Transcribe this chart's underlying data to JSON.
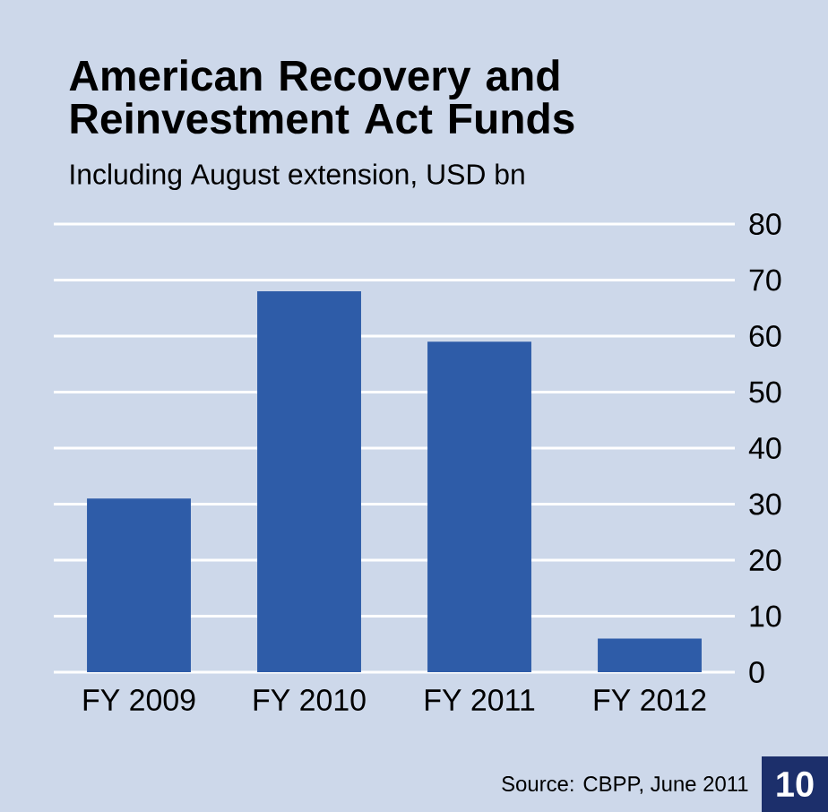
{
  "chart_data": {
    "type": "bar",
    "title": "American Recovery and Reinvestment Act Funds",
    "subtitle": "Including August extension, USD bn",
    "categories": [
      "FY 2009",
      "FY 2010",
      "FY 2011",
      "FY 2012"
    ],
    "values": [
      31,
      68,
      59,
      6
    ],
    "color": "#2e5ca8",
    "ylim": [
      0,
      80
    ],
    "yticks": [
      0,
      10,
      20,
      30,
      40,
      50,
      60,
      70,
      80
    ],
    "grid": "y",
    "annotations": [
      "Source: CBPP, June 2011",
      "10"
    ]
  }
}
